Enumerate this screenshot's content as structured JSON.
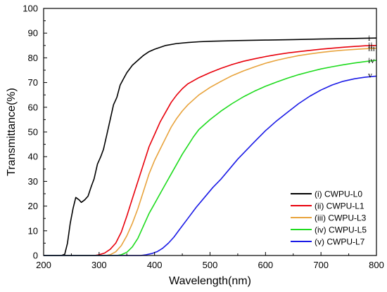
{
  "chart_data": {
    "type": "line",
    "title": "",
    "xlabel": "Wavelength(nm)",
    "ylabel": "Transmittance(%)",
    "xlim": [
      200,
      800
    ],
    "ylim": [
      0,
      100
    ],
    "x_ticks": [
      200,
      300,
      400,
      500,
      600,
      700,
      800
    ],
    "y_ticks": [
      0,
      10,
      20,
      30,
      40,
      50,
      60,
      70,
      80,
      90,
      100
    ],
    "grid": false,
    "legend_position": "bottom-right",
    "series": [
      {
        "name": "(i) CWPU-L0",
        "end_label": "i",
        "color": "#000000",
        "points": [
          [
            232,
            0
          ],
          [
            238,
            0.5
          ],
          [
            243,
            5
          ],
          [
            248,
            13
          ],
          [
            253,
            19
          ],
          [
            258,
            23.5
          ],
          [
            264,
            22.5
          ],
          [
            268,
            21.5
          ],
          [
            274,
            22.5
          ],
          [
            280,
            24
          ],
          [
            286,
            28
          ],
          [
            291,
            31
          ],
          [
            297,
            37
          ],
          [
            303,
            40
          ],
          [
            308,
            43
          ],
          [
            314,
            49
          ],
          [
            320,
            55
          ],
          [
            326,
            61
          ],
          [
            332,
            64
          ],
          [
            338,
            69
          ],
          [
            344,
            71.5
          ],
          [
            350,
            74
          ],
          [
            360,
            77
          ],
          [
            370,
            79
          ],
          [
            380,
            81
          ],
          [
            390,
            82.5
          ],
          [
            400,
            83.5
          ],
          [
            420,
            85
          ],
          [
            440,
            85.8
          ],
          [
            460,
            86.2
          ],
          [
            480,
            86.5
          ],
          [
            500,
            86.7
          ],
          [
            550,
            87
          ],
          [
            600,
            87.2
          ],
          [
            650,
            87.4
          ],
          [
            700,
            87.6
          ],
          [
            750,
            87.8
          ],
          [
            800,
            88
          ]
        ]
      },
      {
        "name": "(ii) CWPU-L1",
        "end_label": "ii",
        "color": "#e8000b",
        "points": [
          [
            292,
            0
          ],
          [
            300,
            0.3
          ],
          [
            310,
            1
          ],
          [
            320,
            2.5
          ],
          [
            330,
            5
          ],
          [
            340,
            9.5
          ],
          [
            350,
            16
          ],
          [
            360,
            23
          ],
          [
            370,
            30
          ],
          [
            380,
            37
          ],
          [
            390,
            44
          ],
          [
            400,
            49
          ],
          [
            410,
            54
          ],
          [
            420,
            58
          ],
          [
            430,
            62
          ],
          [
            440,
            65
          ],
          [
            450,
            67.5
          ],
          [
            460,
            69.5
          ],
          [
            480,
            72
          ],
          [
            500,
            74
          ],
          [
            520,
            75.8
          ],
          [
            540,
            77.3
          ],
          [
            560,
            78.6
          ],
          [
            580,
            79.6
          ],
          [
            600,
            80.5
          ],
          [
            620,
            81.3
          ],
          [
            640,
            82
          ],
          [
            660,
            82.5
          ],
          [
            680,
            83
          ],
          [
            700,
            83.5
          ],
          [
            720,
            83.9
          ],
          [
            740,
            84.3
          ],
          [
            760,
            84.6
          ],
          [
            780,
            84.9
          ],
          [
            800,
            85
          ]
        ]
      },
      {
        "name": "(iii) CWPU-L3",
        "end_label": "iii",
        "color": "#e8a33c",
        "points": [
          [
            312,
            0
          ],
          [
            320,
            0.3
          ],
          [
            330,
            1.5
          ],
          [
            340,
            4
          ],
          [
            350,
            8
          ],
          [
            360,
            13
          ],
          [
            370,
            19
          ],
          [
            380,
            26
          ],
          [
            390,
            33
          ],
          [
            400,
            38.5
          ],
          [
            410,
            43
          ],
          [
            420,
            47.5
          ],
          [
            430,
            52
          ],
          [
            440,
            55.5
          ],
          [
            450,
            58.5
          ],
          [
            460,
            61
          ],
          [
            470,
            63
          ],
          [
            480,
            65
          ],
          [
            500,
            68
          ],
          [
            520,
            70.5
          ],
          [
            540,
            72.8
          ],
          [
            560,
            74.7
          ],
          [
            580,
            76.3
          ],
          [
            600,
            77.8
          ],
          [
            620,
            79
          ],
          [
            640,
            80
          ],
          [
            660,
            80.9
          ],
          [
            680,
            81.6
          ],
          [
            700,
            82.2
          ],
          [
            720,
            82.7
          ],
          [
            740,
            83.1
          ],
          [
            760,
            83.4
          ],
          [
            780,
            83.7
          ],
          [
            800,
            83.9
          ]
        ]
      },
      {
        "name": "(iv) CWPU-L5",
        "end_label": "iv",
        "color": "#1edb1e",
        "points": [
          [
            332,
            0
          ],
          [
            340,
            0.3
          ],
          [
            350,
            1.3
          ],
          [
            360,
            3.5
          ],
          [
            370,
            7
          ],
          [
            380,
            12
          ],
          [
            390,
            17
          ],
          [
            400,
            21
          ],
          [
            410,
            25
          ],
          [
            420,
            29
          ],
          [
            430,
            33
          ],
          [
            440,
            37
          ],
          [
            450,
            41
          ],
          [
            460,
            44.5
          ],
          [
            470,
            48
          ],
          [
            480,
            51
          ],
          [
            490,
            53
          ],
          [
            500,
            55
          ],
          [
            520,
            58.5
          ],
          [
            540,
            61.5
          ],
          [
            560,
            64.2
          ],
          [
            580,
            66.5
          ],
          [
            600,
            68.5
          ],
          [
            620,
            70.2
          ],
          [
            640,
            71.8
          ],
          [
            660,
            73.2
          ],
          [
            680,
            74.4
          ],
          [
            700,
            75.5
          ],
          [
            720,
            76.4
          ],
          [
            740,
            77.2
          ],
          [
            760,
            77.9
          ],
          [
            780,
            78.5
          ],
          [
            800,
            79
          ]
        ]
      },
      {
        "name": "(v) CWPU-L7",
        "end_label": "v",
        "color": "#1a1ae6",
        "points": [
          [
            375,
            0
          ],
          [
            385,
            0.3
          ],
          [
            395,
            0.8
          ],
          [
            405,
            1.6
          ],
          [
            415,
            3
          ],
          [
            425,
            5
          ],
          [
            435,
            7.5
          ],
          [
            445,
            10.5
          ],
          [
            460,
            15
          ],
          [
            475,
            19.5
          ],
          [
            490,
            23.5
          ],
          [
            505,
            27.5
          ],
          [
            520,
            31
          ],
          [
            535,
            35
          ],
          [
            550,
            39
          ],
          [
            565,
            42.5
          ],
          [
            580,
            46
          ],
          [
            600,
            50.5
          ],
          [
            620,
            54.5
          ],
          [
            640,
            58
          ],
          [
            660,
            61.5
          ],
          [
            680,
            64.5
          ],
          [
            700,
            67
          ],
          [
            720,
            69
          ],
          [
            740,
            70.5
          ],
          [
            760,
            71.5
          ],
          [
            780,
            72.2
          ],
          [
            800,
            72.6
          ]
        ]
      }
    ]
  }
}
